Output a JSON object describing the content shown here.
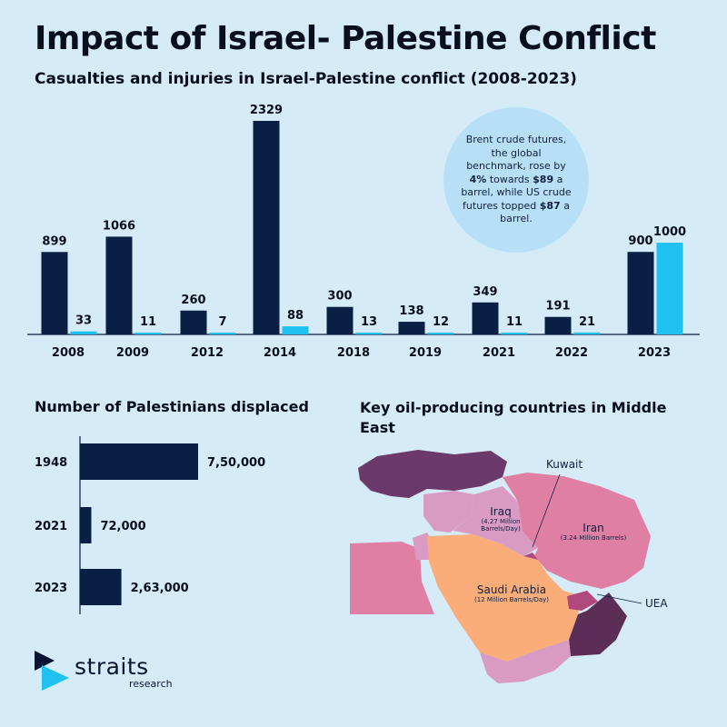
{
  "title": "Impact of Israel- Palestine Conflict",
  "subtitle": "Casualties and injuries in Israel-Palestine conflict (2008-2023)",
  "colors": {
    "dark_bar": "#0a1f44",
    "light_bar": "#1ec1f0",
    "bubble": "#b7e0f6",
    "background": "#d6ebf8"
  },
  "bubble": {
    "p1": "Brent crude futures, the global benchmark, rose by",
    "b1": "4%",
    "p2": "towards",
    "b2": "$89",
    "p3": "a barrel, while US crude futures topped",
    "b3": "$87",
    "p4": "a barrel."
  },
  "chart_data": [
    {
      "type": "bar",
      "categories": [
        "2008",
        "2009",
        "2012",
        "2014",
        "2018",
        "2019",
        "2021",
        "2022",
        "2023"
      ],
      "series": [
        {
          "values": [
            899,
            1066,
            260,
            2329,
            300,
            138,
            349,
            191,
            900
          ]
        },
        {
          "values": [
            33,
            11,
            7,
            88,
            13,
            12,
            11,
            21,
            1000
          ]
        }
      ],
      "title": "Casualties and injuries in Israel-Palestine conflict (2008-2023)"
    },
    {
      "type": "bar",
      "orientation": "horizontal",
      "categories": [
        "1948",
        "2021",
        "2023"
      ],
      "values": [
        750000,
        72000,
        263000
      ],
      "value_labels": [
        "7,50,000",
        "72,000",
        "2,63,000"
      ],
      "title": "Number of Palestinians displaced"
    }
  ],
  "map": {
    "title": "Key oil-producing countries in Middle East",
    "labels": {
      "kuwait": "Kuwait",
      "iraq": "Iraq",
      "iraq_sub1": "(4.27 Million",
      "iraq_sub2": "Barrels/Day)",
      "iran": "Iran",
      "iran_sub": "(3.24 Million Barrels)",
      "saudi": "Saudi Arabia",
      "saudi_sub": "(12 Million Barrels/Day)",
      "uea": "UEA"
    }
  },
  "logo": {
    "name": "straits",
    "sub": "research"
  }
}
